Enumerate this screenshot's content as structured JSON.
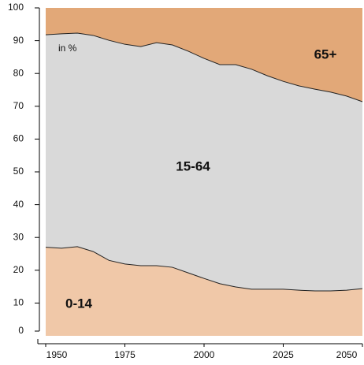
{
  "chart_data": {
    "type": "stacked-area",
    "annotation": "in %",
    "x": [
      1950,
      1955,
      1960,
      1965,
      1970,
      1975,
      1980,
      1985,
      1990,
      1995,
      2000,
      2005,
      2010,
      2015,
      2020,
      2025,
      2030,
      2035,
      2040,
      2045,
      2050
    ],
    "series": [
      {
        "name": "0-14",
        "color": "#f0c8a8",
        "values": [
          27.0,
          26.7,
          27.2,
          25.7,
          23.0,
          21.9,
          21.4,
          21.4,
          20.9,
          19.2,
          17.5,
          15.9,
          14.9,
          14.2,
          14.2,
          14.2,
          13.9,
          13.7,
          13.7,
          13.9,
          14.4
        ]
      },
      {
        "name": "15-64",
        "color": "#d9d9d9",
        "values": [
          64.8,
          65.4,
          65.1,
          65.9,
          67.1,
          67.0,
          66.8,
          68.0,
          67.8,
          67.6,
          67.1,
          66.8,
          67.8,
          67.1,
          65.1,
          63.4,
          62.3,
          61.5,
          60.6,
          59.2,
          57.0
        ]
      },
      {
        "name": "65+",
        "color": "#e2a878",
        "values": [
          8.2,
          7.9,
          7.7,
          8.4,
          9.9,
          11.1,
          11.8,
          10.6,
          11.3,
          13.2,
          15.4,
          17.3,
          17.3,
          18.7,
          20.7,
          22.4,
          23.8,
          24.8,
          25.7,
          26.9,
          28.6
        ]
      }
    ],
    "xlim": [
      1950,
      2050
    ],
    "xticks": [
      1950,
      1975,
      2000,
      2025,
      2050
    ],
    "ylim": [
      0,
      100
    ],
    "yticks": [
      0,
      10,
      20,
      30,
      40,
      50,
      60,
      70,
      80,
      90,
      100
    ]
  }
}
